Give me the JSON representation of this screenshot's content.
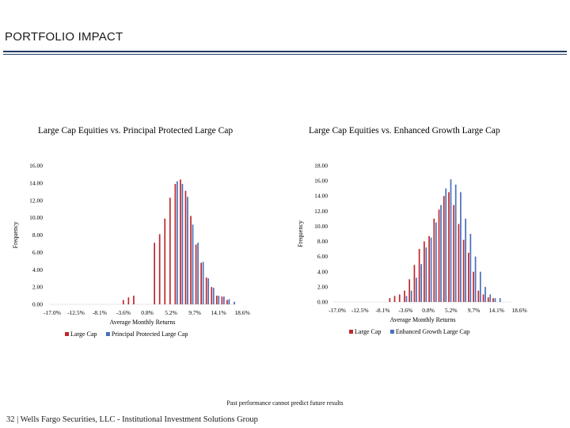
{
  "slide": {
    "title": "PORTFOLIO IMPACT",
    "footnote": "Past performance cannot predict future results",
    "footer": {
      "page_number": "32",
      "separator": "|",
      "company": "Wells Fargo Securities, LLC - Institutional Investment Solutions Group"
    }
  },
  "chart_data": [
    {
      "type": "bar",
      "title": "Large Cap Equities vs. Principal Protected Large Cap",
      "xlabel": "Average Monthly Returns",
      "ylabel": "Frequency",
      "ylim": [
        0,
        16
      ],
      "yticks": [
        "0.00",
        "2.00",
        "4.00",
        "6.00",
        "8.00",
        "10.00",
        "12.00",
        "14.00",
        "16.00"
      ],
      "xticks": [
        "-17.0%",
        "-12.5%",
        "-8.1%",
        "-3.6%",
        "0.8%",
        "5.2%",
        "9.7%",
        "14.1%",
        "18.6%"
      ],
      "legend_position": "bottom",
      "series": [
        {
          "name": "Large Cap",
          "color": "#c0272d",
          "values": [
            0,
            0,
            0,
            0,
            0,
            0,
            0,
            0,
            0,
            0,
            0,
            0,
            0,
            0,
            0.5,
            0.8,
            1.0,
            0,
            0,
            0,
            7.1,
            8.1,
            9.9,
            12.3,
            13.9,
            14.4,
            13.1,
            10.2,
            6.9,
            4.8,
            3.1,
            2.0,
            1.0,
            0.9,
            0.5,
            0
          ]
        },
        {
          "name": "Principal Protected Large Cap",
          "color": "#4a6fb8",
          "values": [
            0,
            0,
            0,
            0,
            0,
            0,
            0,
            0,
            0,
            0,
            0,
            0,
            0,
            0,
            0,
            0,
            0,
            0,
            0,
            0,
            0,
            0,
            0,
            0,
            14.2,
            13.9,
            12.4,
            9.2,
            7.1,
            4.9,
            3.0,
            1.9,
            1.0,
            0.9,
            0.6,
            0.3
          ]
        }
      ]
    },
    {
      "type": "bar",
      "title": "Large Cap Equities vs. Enhanced Growth Large Cap",
      "xlabel": "Average Monthly Returns",
      "ylabel": "Frequency",
      "ylim": [
        0,
        18
      ],
      "yticks": [
        "0.00",
        "2.00",
        "4.00",
        "6.00",
        "8.00",
        "10.00",
        "12.00",
        "14.00",
        "16.00",
        "18.00"
      ],
      "xticks": [
        "-17.0%",
        "-12.5%",
        "-8.1%",
        "-3.6%",
        "0.8%",
        "5.2%",
        "9.7%",
        "14.1%",
        "18.6%"
      ],
      "legend_position": "bottom",
      "series": [
        {
          "name": "Large Cap",
          "color": "#c0272d",
          "values": [
            0,
            0,
            0,
            0,
            0,
            0,
            0,
            0,
            0,
            0,
            0,
            0.5,
            0.8,
            1.0,
            1.5,
            3.0,
            4.9,
            7.0,
            8.0,
            8.7,
            11.0,
            12.2,
            14.0,
            14.5,
            12.8,
            10.3,
            8.2,
            6.5,
            4.0,
            1.5,
            1.0,
            0.6,
            0.5,
            0,
            0,
            0
          ]
        },
        {
          "name": "Enhanced Growth Large Cap",
          "color": "#4a6fb8",
          "values": [
            0,
            0,
            0,
            0,
            0,
            0,
            0,
            0,
            0,
            0,
            0,
            0,
            0,
            0,
            0.8,
            1.5,
            3.2,
            5.0,
            7.2,
            8.5,
            10.5,
            12.8,
            15.0,
            16.2,
            15.5,
            14.5,
            11.0,
            9.0,
            6.0,
            4.0,
            2.0,
            1.0,
            0.5,
            0.5,
            0,
            0
          ]
        }
      ]
    }
  ]
}
